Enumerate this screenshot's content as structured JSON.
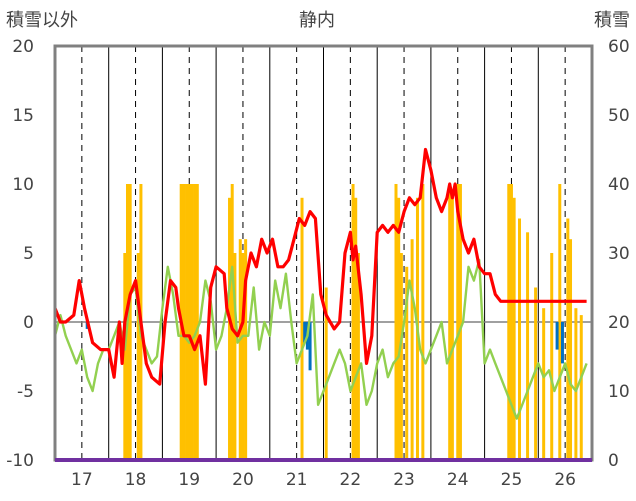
{
  "chart_data": {
    "type": "line",
    "title": "静内",
    "left_axis_label": "積雪以外",
    "right_axis_label": "積雪",
    "ylim_left": [
      -10,
      20
    ],
    "ylim_right": [
      0,
      60
    ],
    "yticks_left": [
      "20",
      "15",
      "10",
      "5",
      "0",
      "-5",
      "-10"
    ],
    "yticks_right": [
      "60",
      "50",
      "40",
      "30",
      "20",
      "10",
      "0"
    ],
    "xlim": [
      16.5,
      26.5
    ],
    "x_tick_labels": [
      "17",
      "18",
      "19",
      "20",
      "21",
      "22",
      "23",
      "24",
      "25",
      "26"
    ],
    "x_tick_values": [
      17,
      18,
      19,
      20,
      21,
      22,
      23,
      24,
      25,
      26
    ],
    "grid": "vertical dashed lines at ticks, solid lines at season boundaries",
    "colors": {
      "red_series": "#ff0000",
      "green_series": "#92d050",
      "snow_bars": "#ffc000",
      "blue_bars": "#0070c0",
      "baseline": "#7030a0",
      "frame": "#808080"
    },
    "series": [
      {
        "color": "#ff0000",
        "x": [
          16.5,
          16.6,
          16.7,
          16.85,
          16.95,
          17.05,
          17.2,
          17.35,
          17.5,
          17.6,
          17.7,
          17.75,
          17.8,
          17.9,
          18.0,
          18.1,
          18.2,
          18.3,
          18.45,
          18.55,
          18.65,
          18.75,
          18.8,
          18.9,
          19.0,
          19.1,
          19.2,
          19.3,
          19.4,
          19.5,
          19.65,
          19.7,
          19.8,
          19.9,
          19.95,
          20.0,
          20.05,
          20.15,
          20.25,
          20.35,
          20.45,
          20.55,
          20.65,
          20.75,
          20.85,
          20.95,
          21.05,
          21.15,
          21.25,
          21.35,
          21.45,
          21.55,
          21.7,
          21.8,
          21.9,
          22.0,
          22.05,
          22.1,
          22.2,
          22.3,
          22.4,
          22.5,
          22.6,
          22.7,
          22.8,
          22.9,
          23.0,
          23.1,
          23.2,
          23.3,
          23.4,
          23.5,
          23.6,
          23.7,
          23.8,
          23.85,
          23.9,
          23.95,
          24.0,
          24.1,
          24.2,
          24.3,
          24.4,
          24.5,
          24.6,
          24.7,
          24.8,
          24.9,
          24.95,
          25.0,
          25.05,
          25.1,
          25.2,
          25.3,
          25.4,
          25.5,
          25.6,
          25.7,
          25.8,
          25.9,
          26.0,
          26.1,
          26.2,
          26.3,
          26.4
        ],
        "values": [
          1,
          0,
          0,
          0.5,
          3,
          1,
          -1.5,
          -2,
          -2,
          -4,
          0,
          -3,
          0,
          2,
          3,
          0,
          -3,
          -4,
          -4.5,
          0,
          3,
          2.5,
          1,
          -1,
          -1,
          -2,
          -1,
          -4.5,
          2.5,
          4,
          3.5,
          1,
          -0.5,
          -1,
          -0.5,
          0,
          3,
          5,
          4,
          6,
          5,
          6,
          4,
          4,
          4.5,
          6,
          7.5,
          7,
          8,
          7.5,
          2,
          0.5,
          -0.5,
          0,
          5,
          6.5,
          4.5,
          5.5,
          2,
          -3,
          -1,
          6.5,
          7,
          6.5,
          7,
          6.5,
          8,
          9,
          8.5,
          9,
          12.5,
          11,
          9,
          8,
          9,
          10,
          9,
          10,
          8,
          6,
          5,
          6,
          4,
          3.5,
          3.5,
          2,
          1.5,
          1.5,
          1.5,
          1.5,
          1.5,
          1.5,
          1.5,
          1.5,
          1.5,
          1.5,
          1.5,
          1.5,
          1.5,
          1.5,
          1.5,
          1.5,
          1.5,
          1.5,
          1.5
        ]
      },
      {
        "color": "#92d050",
        "x": [
          16.5,
          16.6,
          16.7,
          16.8,
          16.9,
          17.0,
          17.1,
          17.2,
          17.3,
          17.4,
          17.5,
          17.6,
          17.7,
          17.8,
          17.9,
          18.0,
          18.1,
          18.2,
          18.3,
          18.4,
          18.5,
          18.6,
          18.7,
          18.8,
          18.9,
          19.0,
          19.1,
          19.2,
          19.3,
          19.4,
          19.5,
          19.6,
          19.7,
          19.8,
          19.9,
          20.0,
          20.1,
          20.2,
          20.3,
          20.4,
          20.5,
          20.6,
          20.7,
          20.8,
          20.9,
          21.0,
          21.1,
          21.2,
          21.3,
          21.4,
          21.5,
          21.6,
          21.7,
          21.8,
          21.9,
          22.0,
          22.1,
          22.2,
          22.3,
          22.4,
          22.5,
          22.6,
          22.7,
          22.8,
          22.9,
          23.0,
          23.1,
          23.2,
          23.3,
          23.4,
          23.5,
          23.6,
          23.7,
          23.8,
          23.9,
          24.0,
          24.1,
          24.2,
          24.3,
          24.4,
          24.5,
          24.6,
          24.7,
          24.8,
          24.9,
          25.0,
          25.1,
          25.2,
          25.3,
          25.4,
          25.5,
          25.6,
          25.7,
          25.8,
          25.9,
          26.0,
          26.1,
          26.2,
          26.3,
          26.4
        ],
        "values": [
          -1,
          0.5,
          -1,
          -2,
          -3,
          -2,
          -4,
          -5,
          -3,
          -2,
          -2,
          -1,
          0,
          -2,
          2,
          2.5,
          -1,
          -2,
          -3,
          -2.5,
          1,
          4,
          2,
          -1,
          -1,
          -1.5,
          -1,
          0,
          3,
          1.5,
          -2,
          -1,
          1,
          4,
          -1.5,
          -1,
          -1,
          2.5,
          -2,
          0,
          -1,
          3,
          1,
          3.5,
          0,
          -3,
          -2,
          -1,
          2,
          -6,
          -5,
          -4,
          -3,
          -2,
          -3,
          -5,
          -4,
          -3,
          -6,
          -5,
          -3,
          -2,
          -4,
          -3,
          -2.5,
          0,
          3,
          1,
          -2,
          -3,
          -2,
          -1,
          0,
          -3,
          -2,
          -1,
          0,
          4,
          3,
          4.5,
          -3,
          -2,
          -3,
          -4,
          -5,
          -6,
          -7,
          -6,
          -5,
          -4,
          -3,
          -4,
          -3.5,
          -5,
          -4,
          -3,
          -4.5,
          -5,
          -4,
          -3
        ]
      }
    ],
    "bars_right_axis": [
      {
        "x": [
          17.8,
          17.85,
          17.9,
          18.05,
          18.1,
          18.85,
          18.9,
          18.95,
          19.0,
          19.05,
          19.1,
          19.15,
          19.75,
          19.8,
          19.85,
          19.95,
          20.0,
          20.05,
          21.1,
          21.55,
          22.05,
          22.1,
          22.15,
          22.85,
          22.9,
          22.95,
          23.05,
          23.15,
          23.25,
          23.35,
          23.85,
          23.9,
          24.0,
          24.05,
          24.95,
          25.0,
          25.05,
          25.15,
          25.3,
          25.45,
          25.6,
          25.75,
          25.9,
          26.05,
          26.1,
          26.2,
          26.3
        ],
        "values": [
          30,
          40,
          40,
          30,
          40,
          40,
          40,
          40,
          40,
          40,
          40,
          40,
          38,
          40,
          30,
          32,
          30,
          32,
          38,
          25,
          40,
          38,
          30,
          40,
          38,
          30,
          28,
          32,
          38,
          40,
          40,
          38,
          40,
          40,
          40,
          40,
          38,
          35,
          33,
          25,
          22,
          30,
          40,
          35,
          32,
          22,
          21
        ]
      }
    ],
    "bars_left_axis": [
      {
        "x": [
          17.1,
          21.15,
          21.2,
          21.25,
          25.85,
          25.95
        ],
        "values": [
          -0.5,
          -1.5,
          -2,
          -3.5,
          -2,
          -3
        ]
      }
    ]
  }
}
